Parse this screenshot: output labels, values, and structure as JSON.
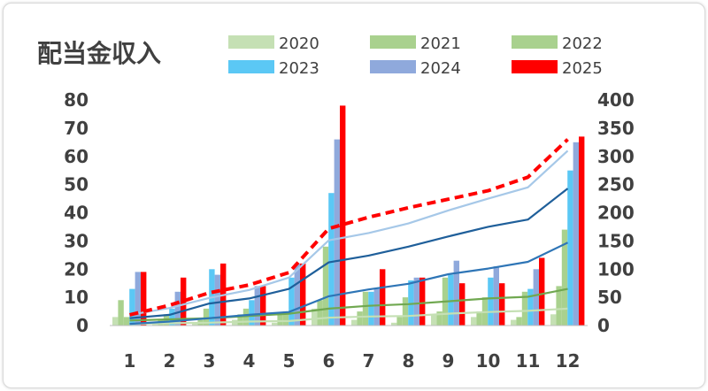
{
  "chart_data": {
    "type": "bar",
    "title": "配当金収入",
    "categories": [
      "1",
      "2",
      "3",
      "4",
      "5",
      "6",
      "7",
      "8",
      "9",
      "10",
      "11",
      "12"
    ],
    "series": [
      {
        "name": "2020",
        "type": "bar",
        "axis": "left",
        "color": "#c5e0b4",
        "values": [
          3,
          1,
          1,
          2,
          1,
          6,
          2,
          1,
          4,
          3,
          2,
          4
        ]
      },
      {
        "name": "2021",
        "type": "bar",
        "axis": "left",
        "color": "#a9d18e",
        "values": [
          9,
          2,
          2,
          4,
          4,
          9,
          5,
          3,
          5,
          5,
          3,
          14
        ]
      },
      {
        "name": "2022",
        "type": "bar",
        "axis": "left",
        "color": "#a9d18e",
        "values": [
          3,
          4,
          6,
          6,
          5,
          28,
          12,
          10,
          17,
          10,
          12,
          34
        ]
      },
      {
        "name": "2023",
        "type": "bar",
        "axis": "left",
        "color": "#5bc8f5",
        "values": [
          13,
          6,
          20,
          9,
          17,
          47,
          12,
          16,
          18,
          17,
          13,
          55
        ]
      },
      {
        "name": "2024",
        "type": "bar",
        "axis": "left",
        "color": "#8fa9dc",
        "values": [
          19,
          12,
          18,
          14,
          22,
          66,
          13,
          17,
          23,
          21,
          20,
          65
        ]
      },
      {
        "name": "2025",
        "type": "bar",
        "axis": "left",
        "color": "#ff0000",
        "values": [
          19,
          17,
          22,
          14,
          22,
          78,
          20,
          17,
          15,
          15,
          24,
          67
        ]
      }
    ],
    "cumulative_lines": [
      {
        "series": "2020",
        "axis": "right",
        "color": "#c5e0b4",
        "values": [
          3,
          4,
          5,
          7,
          8,
          14,
          16,
          17,
          21,
          24,
          26,
          30
        ]
      },
      {
        "series": "2021",
        "axis": "right",
        "color": "#70a850",
        "values": [
          9,
          11,
          13,
          17,
          21,
          30,
          35,
          38,
          43,
          48,
          51,
          65
        ]
      },
      {
        "series": "2022",
        "axis": "right",
        "color": "#2e75b6",
        "values": [
          3,
          7,
          13,
          19,
          24,
          52,
          64,
          74,
          91,
          101,
          113,
          147
        ]
      },
      {
        "series": "2023",
        "axis": "right",
        "color": "#1f5f9a",
        "values": [
          13,
          19,
          39,
          48,
          65,
          112,
          124,
          140,
          158,
          175,
          188,
          243
        ]
      },
      {
        "series": "2024",
        "axis": "right",
        "color": "#a6c8e8",
        "values": [
          19,
          31,
          49,
          63,
          85,
          151,
          164,
          181,
          204,
          225,
          245,
          310
        ]
      },
      {
        "series": "2025",
        "axis": "right",
        "color": "#ff0000",
        "dashed": true,
        "values": [
          19,
          36,
          58,
          72,
          94,
          172,
          192,
          209,
          224,
          239,
          263,
          330
        ]
      }
    ],
    "y_left": {
      "min": 0,
      "max": 80,
      "step": 10,
      "ticks": [
        "0",
        "10",
        "20",
        "30",
        "40",
        "50",
        "60",
        "70",
        "80"
      ]
    },
    "y_right": {
      "min": 0,
      "max": 400,
      "step": 50,
      "ticks": [
        "0",
        "50",
        "100",
        "150",
        "200",
        "250",
        "300",
        "350",
        "400"
      ]
    },
    "grid": false,
    "legend_position": "top-right",
    "xlabel": "",
    "ylabel": ""
  }
}
